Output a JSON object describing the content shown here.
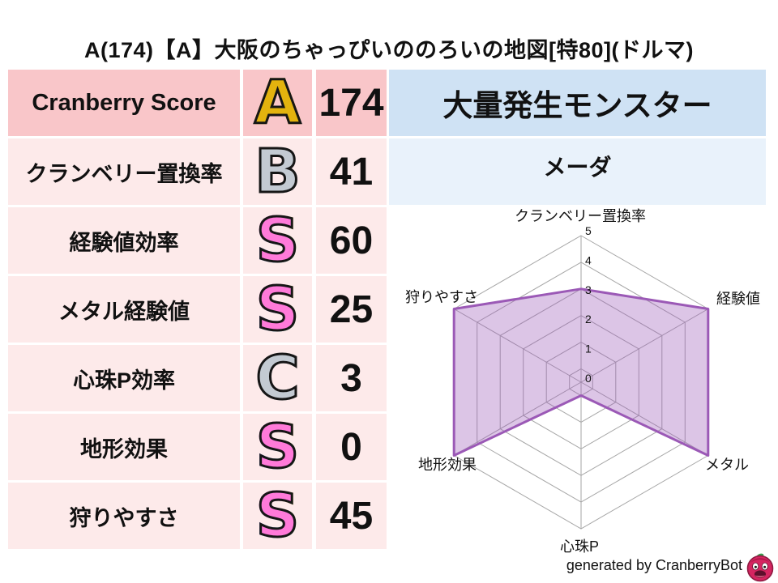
{
  "title": "A(174)【A】大阪のちゃっぴいののろいの地図[特80](ドルマ)",
  "table": {
    "rows": [
      {
        "label": "Cranberry Score",
        "grade": "A",
        "style": "gold",
        "value": "174",
        "emphasis": true,
        "lang": "en"
      },
      {
        "label": "クランベリー置換率",
        "grade": "B",
        "style": "silver",
        "value": "41",
        "emphasis": false,
        "lang": "ja"
      },
      {
        "label": "経験値効率",
        "grade": "S",
        "style": "rainbow",
        "value": "60",
        "emphasis": false,
        "lang": "ja"
      },
      {
        "label": "メタル経験値",
        "grade": "S",
        "style": "rainbow",
        "value": "25",
        "emphasis": false,
        "lang": "ja"
      },
      {
        "label": "心珠P効率",
        "grade": "C",
        "style": "silver",
        "value": "3",
        "emphasis": false,
        "lang": "ja"
      },
      {
        "label": "地形効果",
        "grade": "S",
        "style": "rainbow",
        "value": "0",
        "emphasis": false,
        "lang": "ja"
      },
      {
        "label": "狩りやすさ",
        "grade": "S",
        "style": "rainbow",
        "value": "45",
        "emphasis": false,
        "lang": "ja"
      }
    ]
  },
  "monster_panel": {
    "header": "大量発生モンスター",
    "monster": "メーダ"
  },
  "chart_data": {
    "type": "radar",
    "categories": [
      "クランベリー置換率",
      "経験値",
      "メタル",
      "心珠P",
      "地形効果",
      "狩りやすさ"
    ],
    "values": [
      3,
      5,
      5,
      0,
      5,
      5
    ],
    "ticks": [
      0,
      1,
      2,
      3,
      4,
      5
    ],
    "axis_range": [
      0,
      5
    ],
    "grid": true,
    "legend": "none",
    "fill_color": "#9b59b6",
    "fill_opacity": 0.35,
    "line_color": "#9b59b6",
    "grid_color": "#a6a6a6"
  },
  "footer": {
    "credit": "generated by CranberryBot",
    "logo": "cranberry-bot-logo"
  },
  "colors": {
    "row_emphasis_bg": "#f9c6c9",
    "row_bg": "#fdeaea",
    "monster_header_bg": "#cfe2f4",
    "monster_name_bg": "#e9f2fb",
    "text": "#111111"
  }
}
